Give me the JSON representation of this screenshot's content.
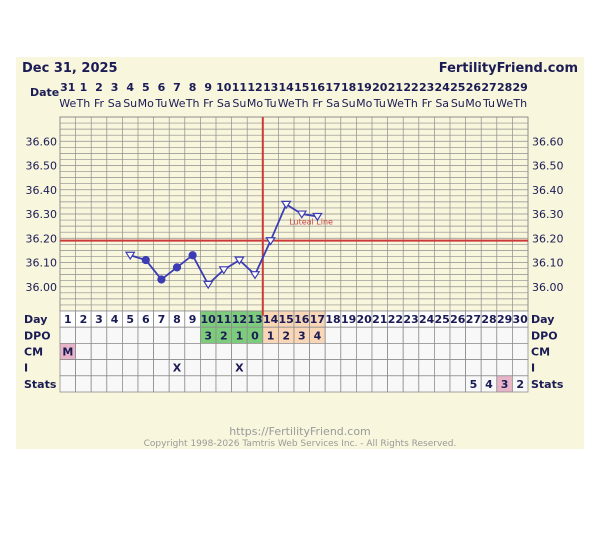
{
  "header": {
    "date": "Dec 31, 2025",
    "brand": "FertilityFriend.com",
    "date_row_label": "Date"
  },
  "footer": {
    "url": "https://FertilityFriend.com",
    "copyright": "Copyright 1998-2026 Tamtris Web Services Inc. - All Rights Reserved."
  },
  "colors": {
    "navy": "#1b1b55",
    "line": "#3c3cb4",
    "red": "#cc3a3a",
    "background": "#f8f6dc",
    "grid": "#8e8e8e",
    "green": "#7ccc7c",
    "peach": "#f9d7b6",
    "pink": "#e8b4c8"
  },
  "chart_data": {
    "type": "line",
    "dates": [
      "31",
      "1",
      "2",
      "3",
      "4",
      "5",
      "6",
      "7",
      "8",
      "9",
      "10",
      "11",
      "12",
      "13",
      "14",
      "15",
      "16",
      "17",
      "18",
      "19",
      "20",
      "21",
      "22",
      "23",
      "24",
      "25",
      "26",
      "27",
      "28",
      "29"
    ],
    "weekdays": [
      "We",
      "Th",
      "Fr",
      "Sa",
      "Su",
      "Mo",
      "Tu",
      "We",
      "Th",
      "Fr",
      "Sa",
      "Su",
      "Mo",
      "Tu",
      "We",
      "Th",
      "Fr",
      "Sa",
      "Su",
      "Mo",
      "Tu",
      "We",
      "Th",
      "Fr",
      "Sa",
      "Su",
      "Mo",
      "Tu",
      "We",
      "Th"
    ],
    "cycle_days": [
      "1",
      "2",
      "3",
      "4",
      "5",
      "6",
      "7",
      "8",
      "9",
      "10",
      "11",
      "12",
      "13",
      "14",
      "15",
      "16",
      "17",
      "18",
      "19",
      "20",
      "21",
      "22",
      "23",
      "24",
      "25",
      "26",
      "27",
      "28",
      "29",
      "30"
    ],
    "y_ticks": [
      "36.60",
      "36.50",
      "36.40",
      "36.30",
      "36.20",
      "36.10",
      "36.00"
    ],
    "ylim": [
      35.9,
      36.7
    ],
    "coverline": 36.19,
    "coverline_label": "Luteal Line",
    "ovulation_day": 13,
    "temperatures": [
      {
        "day": 5,
        "value": 36.13,
        "marker": "open-triangle"
      },
      {
        "day": 6,
        "value": 36.11,
        "marker": "filled-circle"
      },
      {
        "day": 7,
        "value": 36.03,
        "marker": "filled-circle"
      },
      {
        "day": 8,
        "value": 36.08,
        "marker": "filled-circle"
      },
      {
        "day": 9,
        "value": 36.13,
        "marker": "filled-circle"
      },
      {
        "day": 10,
        "value": 36.01,
        "marker": "open-triangle"
      },
      {
        "day": 11,
        "value": 36.07,
        "marker": "open-triangle"
      },
      {
        "day": 12,
        "value": 36.11,
        "marker": "open-triangle"
      },
      {
        "day": 13,
        "value": 36.05,
        "marker": "open-triangle"
      },
      {
        "day": 14,
        "value": 36.19,
        "marker": "open-triangle"
      },
      {
        "day": 15,
        "value": 36.34,
        "marker": "open-triangle"
      },
      {
        "day": 16,
        "value": 36.3,
        "marker": "open-triangle"
      },
      {
        "day": 17,
        "value": 36.29,
        "marker": "open-triangle"
      }
    ],
    "rows": [
      {
        "label": "Day",
        "cells": [
          "1",
          "2",
          "3",
          "4",
          "5",
          "6",
          "7",
          "8",
          "9",
          "10",
          "11",
          "12",
          "13",
          "14",
          "15",
          "16",
          "17",
          "18",
          "19",
          "20",
          "21",
          "22",
          "23",
          "24",
          "25",
          "26",
          "27",
          "28",
          "29",
          "30"
        ]
      },
      {
        "label": "DPO",
        "cells": [
          "",
          "",
          "",
          "",
          "",
          "",
          "",
          "",
          "",
          "3",
          "2",
          "1",
          "0",
          "1",
          "2",
          "3",
          "4",
          "",
          "",
          "",
          "",
          "",
          "",
          "",
          "",
          "",
          "",
          "",
          "",
          ""
        ]
      },
      {
        "label": "CM",
        "cells": [
          "M",
          "",
          "",
          "",
          "",
          "",
          "",
          "",
          "",
          "",
          "",
          "",
          "",
          "",
          "",
          "",
          "",
          "",
          "",
          "",
          "",
          "",
          "",
          "",
          "",
          "",
          "",
          "",
          "",
          ""
        ]
      },
      {
        "label": "I",
        "cells": [
          "",
          "",
          "",
          "",
          "",
          "",
          "",
          "X",
          "",
          "",
          "",
          "X",
          "",
          "",
          "",
          "",
          "",
          "",
          "",
          "",
          "",
          "",
          "",
          "",
          "",
          "",
          "",
          "",
          "",
          ""
        ]
      },
      {
        "label": "Stats",
        "cells": [
          "",
          "",
          "",
          "",
          "",
          "",
          "",
          "",
          "",
          "",
          "",
          "",
          "",
          "",
          "",
          "",
          "",
          "",
          "",
          "",
          "",
          "",
          "",
          "",
          "",
          "",
          "5",
          "4",
          "3",
          "2"
        ]
      }
    ],
    "highlights": {
      "green_days": [
        10,
        11,
        12,
        13
      ],
      "peach_days": [
        14,
        15,
        16,
        17
      ],
      "cm_pink_day": 1,
      "stats_pink_day": 29
    }
  }
}
